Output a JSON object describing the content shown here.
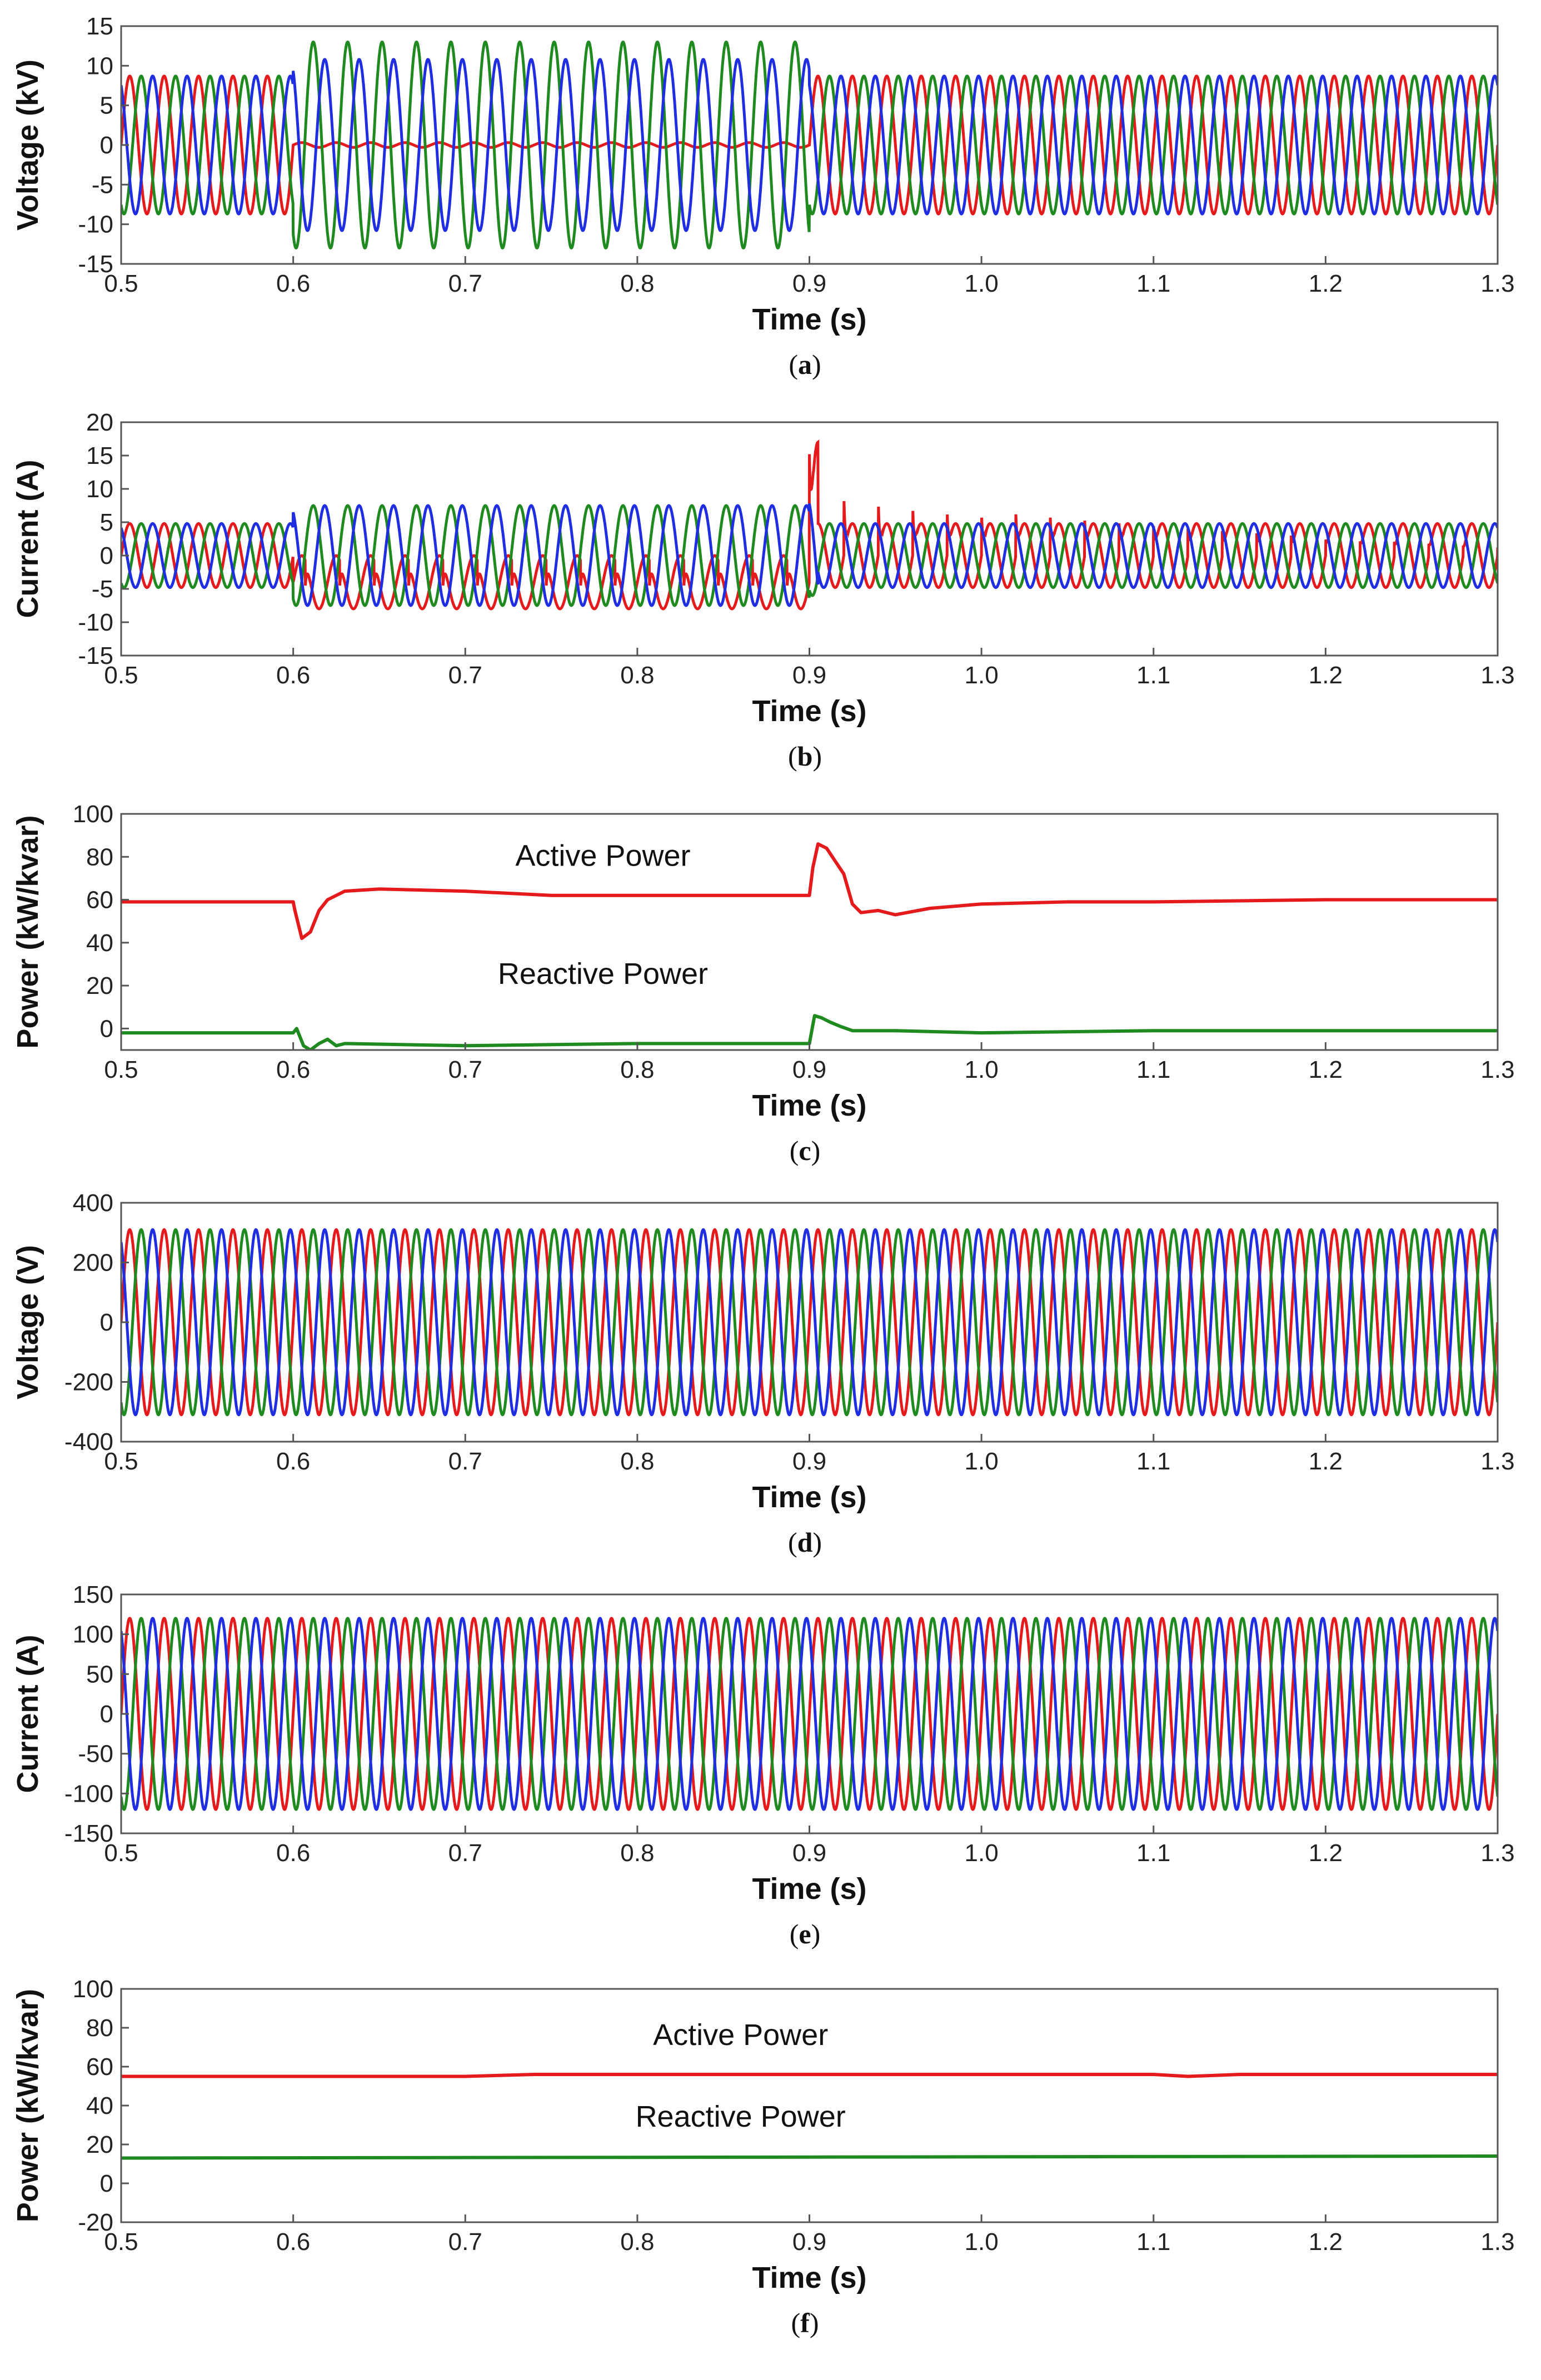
{
  "chart_data": [
    {
      "panel": "a",
      "caption_letter": "a",
      "type": "line",
      "xlabel": "Time (s)",
      "ylabel": "Voltage (kV)",
      "xlim": [
        0.5,
        1.3
      ],
      "ylim": [
        -15,
        15
      ],
      "xticks": [
        "0.5",
        "0.6",
        "0.7",
        "0.8",
        "0.9",
        "1.0",
        "1.1",
        "1.2",
        "1.3"
      ],
      "yticks": [
        "15",
        "10",
        "5",
        "0",
        "-5",
        "-10",
        "-15"
      ],
      "grid": false,
      "colors": [
        "#e41a1c",
        "#1f8a1f",
        "#1f2ee0"
      ],
      "waveform": {
        "kind": "three_phase_sine",
        "frequency_hz": 50,
        "amplitude": 8.7,
        "segments": [
          {
            "t_from": 0.6,
            "t_to": 0.9,
            "amplitudes": [
              0.3,
              13.0,
              10.8
            ]
          }
        ]
      }
    },
    {
      "panel": "b",
      "caption_letter": "b",
      "type": "line",
      "xlabel": "Time (s)",
      "ylabel": "Current (A)",
      "xlim": [
        0.5,
        1.3
      ],
      "ylim": [
        -15,
        20
      ],
      "xticks": [
        "0.5",
        "0.6",
        "0.7",
        "0.8",
        "0.9",
        "1.0",
        "1.1",
        "1.2",
        "1.3"
      ],
      "yticks": [
        "20",
        "15",
        "10",
        "5",
        "0",
        "-5",
        "-10",
        "-15"
      ],
      "grid": false,
      "colors": [
        "#e41a1c",
        "#1f8a1f",
        "#1f2ee0"
      ],
      "waveform": {
        "kind": "three_phase_sine",
        "frequency_hz": 50,
        "amplitude": 4.8,
        "segments": [
          {
            "t_from": 0.6,
            "t_to": 0.9,
            "amplitudes": [
              4.0,
              7.5,
              7.5
            ],
            "offsets": [
              -4.0,
              0,
              0
            ]
          },
          {
            "t_from": 0.9,
            "t_to": 0.905,
            "amplitudes": [
              14.0,
              6.0,
              9.0
            ],
            "offsets": [
              3.0,
              0,
              0
            ]
          }
        ],
        "spikes": {
          "series": 0,
          "t_from": 0.9,
          "t_to": 1.3,
          "peak_start": 17,
          "peak_end": 6
        }
      }
    },
    {
      "panel": "c",
      "caption_letter": "c",
      "type": "line",
      "xlabel": "Time (s)",
      "ylabel": "Power (kW/kvar)",
      "xlim": [
        0.5,
        1.3
      ],
      "ylim": [
        -10,
        100
      ],
      "xticks": [
        "0.5",
        "0.6",
        "0.7",
        "0.8",
        "0.9",
        "1.0",
        "1.1",
        "1.2",
        "1.3"
      ],
      "yticks": [
        "100",
        "80",
        "60",
        "40",
        "20",
        "0"
      ],
      "grid": false,
      "series": [
        {
          "name": "Active Power",
          "color": "#e41a1c",
          "x": [
            0.5,
            0.6,
            0.601,
            0.605,
            0.61,
            0.615,
            0.62,
            0.63,
            0.65,
            0.7,
            0.75,
            0.8,
            0.85,
            0.9,
            0.902,
            0.905,
            0.91,
            0.915,
            0.92,
            0.925,
            0.93,
            0.94,
            0.95,
            0.97,
            1.0,
            1.05,
            1.1,
            1.2,
            1.3
          ],
          "y": [
            59,
            59,
            55,
            42,
            45,
            55,
            60,
            64,
            65,
            64,
            62,
            62,
            62,
            62,
            75,
            86,
            84,
            78,
            72,
            58,
            54,
            55,
            53,
            56,
            58,
            59,
            59,
            60,
            60
          ]
        },
        {
          "name": "Reactive Power",
          "color": "#1f8a1f",
          "x": [
            0.5,
            0.6,
            0.602,
            0.606,
            0.61,
            0.615,
            0.62,
            0.625,
            0.63,
            0.7,
            0.8,
            0.9,
            0.903,
            0.907,
            0.912,
            0.918,
            0.925,
            0.95,
            1.0,
            1.1,
            1.2,
            1.3
          ],
          "y": [
            -2,
            -2,
            0,
            -8,
            -10,
            -7,
            -5,
            -8,
            -7,
            -8,
            -7,
            -7,
            6,
            5,
            3,
            1,
            -1,
            -1,
            -2,
            -1,
            -1,
            -1
          ]
        }
      ],
      "annotations": [
        "Active Power",
        "Reactive Power"
      ]
    },
    {
      "panel": "d",
      "caption_letter": "d",
      "type": "line",
      "xlabel": "Time (s)",
      "ylabel": "Voltage (V)",
      "xlim": [
        0.5,
        1.3
      ],
      "ylim": [
        -400,
        400
      ],
      "xticks": [
        "0.5",
        "0.6",
        "0.7",
        "0.8",
        "0.9",
        "1.0",
        "1.1",
        "1.2",
        "1.3"
      ],
      "yticks": [
        "400",
        "200",
        "0",
        "-200",
        "-400"
      ],
      "grid": false,
      "colors": [
        "#e41a1c",
        "#1f8a1f",
        "#1f2ee0"
      ],
      "waveform": {
        "kind": "three_phase_sine",
        "frequency_hz": 50,
        "amplitude": 310
      }
    },
    {
      "panel": "e",
      "caption_letter": "e",
      "type": "line",
      "xlabel": "Time (s)",
      "ylabel": "Current (A)",
      "xlim": [
        0.5,
        1.3
      ],
      "ylim": [
        -150,
        150
      ],
      "xticks": [
        "0.5",
        "0.6",
        "0.7",
        "0.8",
        "0.9",
        "1.0",
        "1.1",
        "1.2",
        "1.3"
      ],
      "yticks": [
        "150",
        "100",
        "50",
        "0",
        "-50",
        "-100",
        "-150"
      ],
      "grid": false,
      "colors": [
        "#e41a1c",
        "#1f8a1f",
        "#1f2ee0"
      ],
      "waveform": {
        "kind": "three_phase_sine",
        "frequency_hz": 50,
        "amplitude": 120
      }
    },
    {
      "panel": "f",
      "caption_letter": "f",
      "type": "line",
      "xlabel": "Time (s)",
      "ylabel": "Power (kW/kvar)",
      "xlim": [
        0.5,
        1.3
      ],
      "ylim": [
        -20,
        100
      ],
      "xticks": [
        "0.5",
        "0.6",
        "0.7",
        "0.8",
        "0.9",
        "1.0",
        "1.1",
        "1.2",
        "1.3"
      ],
      "yticks": [
        "100",
        "80",
        "60",
        "40",
        "20",
        "0",
        "-20"
      ],
      "grid": false,
      "series": [
        {
          "name": "Active Power",
          "color": "#e41a1c",
          "x": [
            0.5,
            0.7,
            0.74,
            0.75,
            0.8,
            1.1,
            1.12,
            1.15,
            1.2,
            1.3
          ],
          "y": [
            55,
            55,
            56,
            56,
            56,
            56,
            55,
            56,
            56,
            56
          ]
        },
        {
          "name": "Reactive Power",
          "color": "#1f8a1f",
          "x": [
            0.5,
            1.3
          ],
          "y": [
            13,
            14
          ]
        }
      ],
      "annotations": [
        "Active Power",
        "Reactive Power"
      ]
    }
  ]
}
